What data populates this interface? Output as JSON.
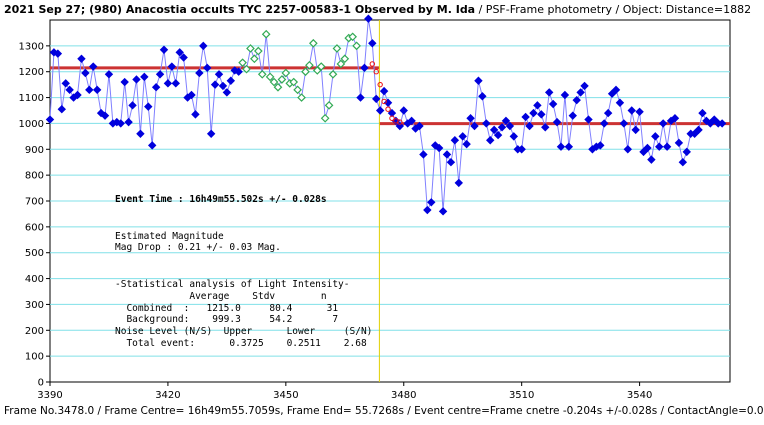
{
  "header": {
    "title_bold": "2021 Sep 27; (980) Anacostia occults TYC 2257-00583-1 Observed by M. Ida",
    "title_rest": " / PSF-Frame photometry / Object: Distance=1882"
  },
  "footer": {
    "text": "Frame No.3478.0 / Frame Centre= 16h49m55.7059s, Frame End= 55.7268s / Event centre=Frame cnetre -0.204s +/-0.028s / ContactAngle=0.0"
  },
  "annotations": {
    "event_time": "Event Time : 16h49m55.502s  +/- 0.028s",
    "est_header": "Estimated Magnitude",
    "mag_drop": "Mag Drop      :  0.21 +/- 0.03  Mag.",
    "stat_header": "-Statistical analysis of Light Intensity-",
    "col_header": "             Average    Stdv        n",
    "combined": "  Combined  :   1215.0     80.4      31",
    "background": "  Background:    999.3     54.2       7",
    "noise_header": "Noise Level (N/S)  Upper      Lower     (S/N)",
    "total_event": "  Total event:      0.3725    0.2511    2.68"
  },
  "colors": {
    "blue_series": "#0000dd",
    "green_series": "#33aa55",
    "level_line": "#cc3333",
    "event_line": "#e0d000",
    "fit_line": "#ff6666",
    "grid": "#80e0e8"
  },
  "chart_data": {
    "type": "scatter",
    "xlim": [
      3390,
      3563
    ],
    "ylim": [
      0,
      1400
    ],
    "x_ticks": [
      3390,
      3420,
      3450,
      3480,
      3510,
      3540
    ],
    "y_ticks": [
      0,
      100,
      200,
      300,
      400,
      500,
      600,
      700,
      800,
      900,
      1000,
      1100,
      1200,
      1300
    ],
    "grid": true,
    "levels": {
      "combined": 1215.0,
      "background": 999.3
    },
    "event_frame": 3473.8,
    "series": [
      {
        "marker": "diamond",
        "color": "#0000dd",
        "x": [
          3390,
          3391,
          3392,
          3393,
          3394,
          3395,
          3396,
          3397,
          3398,
          3399,
          3400,
          3401,
          3402,
          3403,
          3404,
          3405,
          3406,
          3407,
          3408,
          3409,
          3410,
          3411,
          3412,
          3413,
          3414,
          3415,
          3416,
          3417,
          3418,
          3419,
          3420,
          3421,
          3422,
          3423,
          3424,
          3425,
          3426,
          3427,
          3428,
          3429,
          3430,
          3431,
          3432,
          3433,
          3434,
          3435,
          3436,
          3437,
          3438
        ],
        "y": [
          1015,
          1275,
          1270,
          1055,
          1155,
          1130,
          1100,
          1110,
          1250,
          1195,
          1130,
          1220,
          1130,
          1040,
          1030,
          1190,
          1000,
          1005,
          1000,
          1160,
          1005,
          1070,
          1170,
          960,
          1180,
          1065,
          915,
          1140,
          1190,
          1285,
          1155,
          1220,
          1155,
          1275,
          1255,
          1100,
          1110,
          1035,
          1195,
          1300,
          1215,
          960,
          1150,
          1190,
          1145,
          1120,
          1165,
          1205,
          1200
        ]
      },
      {
        "marker": "diamond",
        "color": "#33aa55",
        "x": [
          3439,
          3440,
          3441,
          3442,
          3443,
          3444,
          3445,
          3446,
          3447,
          3448,
          3449,
          3450,
          3451,
          3452,
          3453,
          3454,
          3455,
          3456,
          3457,
          3458,
          3459,
          3460,
          3461,
          3462,
          3463,
          3464,
          3465,
          3466,
          3467,
          3468
        ],
        "y": [
          1235,
          1210,
          1290,
          1250,
          1280,
          1190,
          1345,
          1180,
          1160,
          1140,
          1170,
          1195,
          1155,
          1160,
          1130,
          1100,
          1200,
          1225,
          1310,
          1205,
          1220,
          1020,
          1070,
          1190,
          1290,
          1230,
          1250,
          1330,
          1335,
          1300
        ]
      },
      {
        "marker": "diamond",
        "color": "#0000dd",
        "x": [
          3469,
          3470,
          3471,
          3472,
          3473,
          3474,
          3475,
          3476,
          3477,
          3478,
          3479,
          3480,
          3481,
          3482,
          3483,
          3484,
          3485,
          3486,
          3487,
          3488,
          3489,
          3490,
          3491,
          3492,
          3493,
          3494,
          3495,
          3496,
          3497,
          3498,
          3499,
          3500,
          3501,
          3502,
          3503,
          3504,
          3505,
          3506,
          3507,
          3508,
          3509,
          3510,
          3511,
          3512,
          3513,
          3514,
          3515,
          3516,
          3517,
          3518,
          3519,
          3520,
          3521,
          3522,
          3523,
          3524,
          3525,
          3526,
          3527,
          3528,
          3529,
          3530,
          3531,
          3532,
          3533,
          3534,
          3535,
          3536,
          3537,
          3538,
          3539,
          3540,
          3541,
          3542,
          3543,
          3544,
          3545,
          3546,
          3547,
          3548,
          3549,
          3550,
          3551,
          3552,
          3553,
          3554,
          3555,
          3556,
          3557,
          3558,
          3559,
          3560,
          3561
        ],
        "y": [
          1100,
          1215,
          1405,
          1310,
          1095,
          1050,
          1125,
          1080,
          1040,
          1010,
          990,
          1050,
          1000,
          1010,
          980,
          990,
          880,
          665,
          695,
          915,
          905,
          660,
          880,
          850,
          935,
          770,
          950,
          920,
          1020,
          990,
          1165,
          1105,
          1000,
          935,
          975,
          955,
          985,
          1010,
          990,
          950,
          900,
          900,
          1025,
          990,
          1040,
          1070,
          1035,
          985,
          1120,
          1075,
          1005,
          910,
          1110,
          910,
          1030,
          1090,
          1120,
          1145,
          1015,
          900,
          910,
          915,
          1000,
          1040,
          1115,
          1130,
          1080,
          1000,
          900,
          1050,
          975,
          1045,
          890,
          905,
          860,
          950,
          910,
          1000,
          910,
          1010,
          1020,
          925,
          850,
          890,
          960,
          960,
          975,
          1040,
          1010,
          1000,
          1015,
          1000,
          1000
        ]
      },
      {
        "marker": "circle",
        "color": "#ee1111",
        "x": [
          3472,
          3473,
          3474,
          3475,
          3476,
          3477,
          3478,
          3479
        ],
        "y": [
          1230,
          1200,
          1150,
          1085,
          1055,
          1020,
          1010,
          1005
        ]
      }
    ]
  }
}
